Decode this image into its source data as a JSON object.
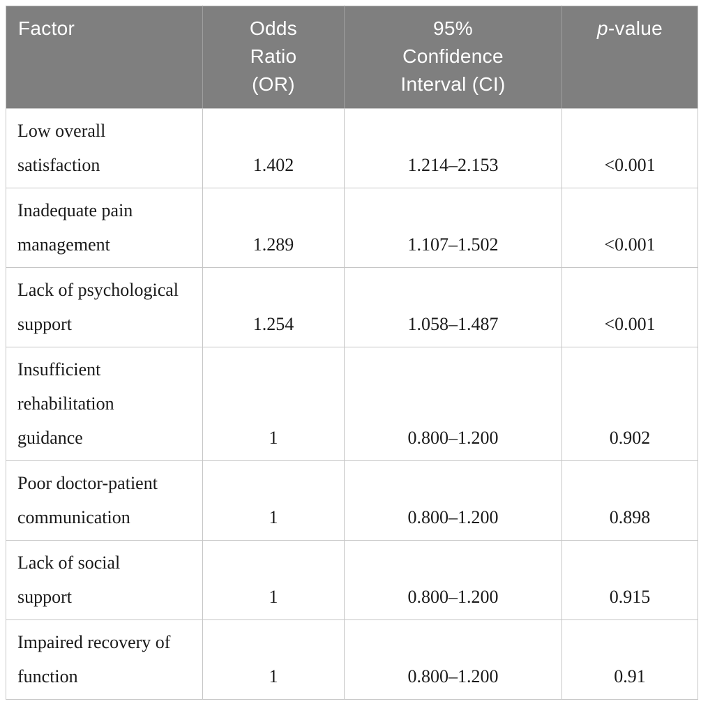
{
  "table": {
    "colors": {
      "header_bg": "#7f7f7f",
      "header_divider": "#9e9e9e",
      "header_text": "#ffffff",
      "body_border": "#c6c6c6",
      "body_text": "#1a1a1a",
      "page_bg": "#ffffff"
    },
    "header": {
      "columns": [
        {
          "label": "Factor"
        },
        {
          "label": "Odds\nRatio\n(OR)"
        },
        {
          "label": "95%\nConfidence\nInterval (CI)"
        },
        {
          "label_italic": "p",
          "label_rest": "-value"
        }
      ]
    },
    "rows": [
      {
        "factor": "Low overall\nsatisfaction",
        "odds_ratio": "1.402",
        "confidence_interval": "1.214–2.153",
        "p_value": "<0.001"
      },
      {
        "factor": "Inadequate pain\nmanagement",
        "odds_ratio": "1.289",
        "confidence_interval": "1.107–1.502",
        "p_value": "<0.001"
      },
      {
        "factor": "Lack of psychological\nsupport",
        "odds_ratio": "1.254",
        "confidence_interval": "1.058–1.487",
        "p_value": "<0.001"
      },
      {
        "factor": "Insufficient\nrehabilitation\nguidance",
        "odds_ratio": "1",
        "confidence_interval": "0.800–1.200",
        "p_value": "0.902"
      },
      {
        "factor": "Poor doctor-patient\ncommunication",
        "odds_ratio": "1",
        "confidence_interval": "0.800–1.200",
        "p_value": "0.898"
      },
      {
        "factor": "Lack of social\nsupport",
        "odds_ratio": "1",
        "confidence_interval": "0.800–1.200",
        "p_value": "0.915"
      },
      {
        "factor": "Impaired recovery of\nfunction",
        "odds_ratio": "1",
        "confidence_interval": "0.800–1.200",
        "p_value": "0.91"
      }
    ]
  }
}
